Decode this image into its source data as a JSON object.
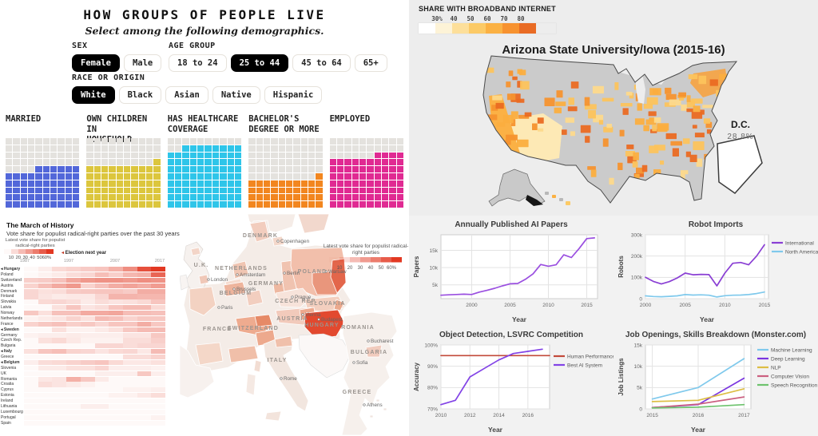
{
  "demographics": {
    "filters": [
      {
        "label": "SEX",
        "selected": "Female",
        "options": [
          "Female",
          "Male"
        ]
      },
      {
        "label": "AGE GROUP",
        "selected": "25 to 44",
        "options": [
          "18 to 24",
          "25 to 44",
          "45 to 64",
          "65+"
        ]
      },
      {
        "label": "RACE OR ORIGIN",
        "selected": "White",
        "options": [
          "White",
          "Black",
          "Asian",
          "Native",
          "Hispanic"
        ]
      }
    ]
  },
  "chart_data": [
    {
      "type": "waffle",
      "title": "HOW GROUPS OF PEOPLE LIVE",
      "subtitle": "Select among the following demographics.",
      "categories": [
        "MARRIED",
        "OWN CHILDREN IN\nHOUSEHOLD",
        "HAS HEALTHCARE\nCOVERAGE",
        "BACHELOR'S\nDEGREE OR MORE",
        "EMPLOYED"
      ],
      "values": [
        56,
        61,
        88,
        41,
        74
      ],
      "unit": "percent of group (cells of 10x10 grid)",
      "colors": [
        "#5267d9",
        "#dcc63d",
        "#2ec5e9",
        "#f2861f",
        "#e02a92"
      ],
      "empty_color": "#e4e2de"
    },
    {
      "type": "choropleth",
      "region": "United States counties",
      "title": "Arizona State University/Iowa (2015-16)",
      "legend_title": "SHARE WITH BROADBAND INTERNET",
      "legend_ticks": [
        "30%",
        "40",
        "50",
        "60",
        "70",
        "80"
      ],
      "legend_colors": [
        "#ffffff",
        "#fdf3d7",
        "#fddf9a",
        "#fcca66",
        "#fbb143",
        "#f7922f",
        "#e96b24"
      ],
      "annotation": {
        "label": "D.C.",
        "value": "28.8%"
      }
    },
    {
      "type": "heatmap",
      "title": "The March of History",
      "subtitle": "Vote share for populist radical-right parties over the past 30 years",
      "legend_label": "Latest vote share for populist radical-right parties",
      "legend_ticks": [
        "10",
        "20",
        "30",
        "40",
        "50",
        "60%"
      ],
      "note_marker": "◂",
      "note_text": " Election next year",
      "year_ticks": [
        "1987",
        "1997",
        "2007",
        "2017"
      ],
      "scale_color": "#e23822",
      "rows": [
        {
          "name": "Hungary",
          "marked": true,
          "values": [
            0,
            2,
            8,
            10,
            12,
            14,
            20,
            30,
            48,
            56
          ]
        },
        {
          "name": "Poland",
          "marked": false,
          "values": [
            0,
            1,
            3,
            7,
            9,
            16,
            11,
            18,
            20,
            42
          ]
        },
        {
          "name": "Switzerland",
          "marked": false,
          "values": [
            11,
            12,
            15,
            23,
            27,
            29,
            29,
            27,
            30,
            29
          ]
        },
        {
          "name": "Austria",
          "marked": false,
          "values": [
            10,
            16,
            22,
            27,
            10,
            15,
            21,
            24,
            21,
            26
          ]
        },
        {
          "name": "Denmark",
          "marked": false,
          "values": [
            9,
            6,
            7,
            12,
            13,
            14,
            14,
            12,
            21,
            21
          ]
        },
        {
          "name": "Finland",
          "marked": false,
          "values": [
            9,
            5,
            3,
            4,
            4,
            9,
            19,
            19,
            18,
            18
          ]
        },
        {
          "name": "Slovakia",
          "marked": false,
          "values": [
            0,
            8,
            9,
            7,
            3,
            7,
            5,
            6,
            8,
            14
          ]
        },
        {
          "name": "Latvia",
          "marked": false,
          "values": [
            0,
            0,
            6,
            14,
            5,
            7,
            14,
            17,
            17,
            8
          ]
        },
        {
          "name": "Norway",
          "marked": false,
          "values": [
            13,
            6,
            15,
            15,
            22,
            22,
            23,
            16,
            16,
            15
          ]
        },
        {
          "name": "Netherlands",
          "marked": false,
          "values": [
            1,
            3,
            5,
            10,
            6,
            17,
            15,
            10,
            13,
            13
          ]
        },
        {
          "name": "France",
          "marked": false,
          "values": [
            10,
            13,
            15,
            11,
            13,
            9,
            14,
            14,
            21,
            13
          ]
        },
        {
          "name": "Sweden",
          "marked": true,
          "values": [
            0,
            0,
            6,
            1,
            1,
            3,
            6,
            13,
            17,
            17
          ]
        },
        {
          "name": "Germany",
          "marked": false,
          "values": [
            1,
            2,
            2,
            3,
            2,
            2,
            2,
            5,
            5,
            13
          ]
        },
        {
          "name": "Czech Rep.",
          "marked": false,
          "values": [
            0,
            6,
            8,
            4,
            1,
            1,
            1,
            7,
            7,
            11
          ]
        },
        {
          "name": "Bulgaria",
          "marked": false,
          "values": [
            0,
            0,
            0,
            0,
            0,
            9,
            9,
            7,
            9,
            9
          ]
        },
        {
          "name": "Italy",
          "marked": true,
          "values": [
            6,
            14,
            16,
            10,
            9,
            5,
            8,
            9,
            4,
            17
          ]
        },
        {
          "name": "Greece",
          "marked": false,
          "values": [
            0,
            0,
            0,
            0,
            0,
            0,
            0,
            7,
            7,
            10
          ]
        },
        {
          "name": "Belgium",
          "marked": true,
          "values": [
            2,
            7,
            8,
            10,
            12,
            14,
            8,
            4,
            4,
            6
          ]
        },
        {
          "name": "Slovenia",
          "marked": false,
          "values": [
            0,
            3,
            3,
            6,
            6,
            9,
            2,
            2,
            2,
            1
          ]
        },
        {
          "name": "UK",
          "marked": false,
          "values": [
            0,
            0,
            0,
            0,
            0,
            2,
            2,
            2,
            13,
            2
          ]
        },
        {
          "name": "Romania",
          "marked": false,
          "values": [
            0,
            4,
            5,
            20,
            13,
            3,
            0,
            0,
            0,
            0
          ]
        },
        {
          "name": "Croatia",
          "marked": false,
          "values": [
            0,
            7,
            5,
            3,
            1,
            0,
            0,
            0,
            0,
            0
          ]
        },
        {
          "name": "Cyprus",
          "marked": false,
          "values": [
            0,
            0,
            0,
            0,
            0,
            0,
            0,
            1,
            1,
            2
          ]
        },
        {
          "name": "Estonia",
          "marked": false,
          "values": [
            0,
            0,
            0,
            0,
            0,
            0,
            1,
            1,
            4,
            7
          ]
        },
        {
          "name": "Ireland",
          "marked": false,
          "values": [
            0,
            0,
            0,
            0,
            0,
            0,
            0,
            0,
            0,
            0
          ]
        },
        {
          "name": "Lithuania",
          "marked": false,
          "values": [
            0,
            0,
            0,
            0,
            2,
            2,
            0,
            0,
            0,
            0
          ]
        },
        {
          "name": "Luxembourg",
          "marked": false,
          "values": [
            0,
            0,
            0,
            0,
            0,
            0,
            0,
            0,
            0,
            0
          ]
        },
        {
          "name": "Portugal",
          "marked": false,
          "values": [
            0,
            0,
            0,
            0,
            0,
            0,
            0,
            0,
            0,
            1
          ]
        },
        {
          "name": "Spain",
          "marked": false,
          "values": [
            0,
            0,
            0,
            0,
            0,
            0,
            0,
            0,
            0,
            0
          ]
        }
      ]
    },
    {
      "type": "choropleth",
      "region": "Europe",
      "legend_label_line1": "Latest vote share for populist radical-",
      "legend_label_line2": "right parties",
      "legend_ticks": [
        "10",
        "20",
        "30",
        "40",
        "50",
        "60%"
      ],
      "scale_color": "#e23822",
      "countries": [
        {
          "name": "DENMARK",
          "x": 101,
          "y": 29
        },
        {
          "name": "U.K.",
          "x": 27,
          "y": 66
        },
        {
          "name": "NETHERLANDS",
          "x": 77,
          "y": 70
        },
        {
          "name": "GERMANY",
          "x": 108,
          "y": 89
        },
        {
          "name": "BELGIUM",
          "x": 70,
          "y": 101
        },
        {
          "name": "POLAND",
          "x": 166,
          "y": 74
        },
        {
          "name": "CZECH REP.",
          "x": 146,
          "y": 111
        },
        {
          "name": "SLOVAKIA",
          "x": 185,
          "y": 114
        },
        {
          "name": "AUSTRIA",
          "x": 141,
          "y": 133
        },
        {
          "name": "HUNGARY",
          "x": 178,
          "y": 141
        },
        {
          "name": "FRANCE",
          "x": 47,
          "y": 146
        },
        {
          "name": "SWITZERLAND",
          "x": 92,
          "y": 145
        },
        {
          "name": "ROMANIA",
          "x": 223,
          "y": 144
        },
        {
          "name": "BULGARIA",
          "x": 237,
          "y": 175
        },
        {
          "name": "ITALY",
          "x": 122,
          "y": 185
        },
        {
          "name": "GREECE",
          "x": 222,
          "y": 225
        }
      ],
      "cities": [
        {
          "name": "Copenhagen",
          "x": 123,
          "y": 34
        },
        {
          "name": "London",
          "x": 36,
          "y": 82
        },
        {
          "name": "Amsterdam",
          "x": 72,
          "y": 76
        },
        {
          "name": "Berlin",
          "x": 131,
          "y": 74
        },
        {
          "name": "Brussels",
          "x": 68,
          "y": 94
        },
        {
          "name": "Warsaw",
          "x": 183,
          "y": 72
        },
        {
          "name": "Prague",
          "x": 141,
          "y": 104
        },
        {
          "name": "Vienna",
          "x": 154,
          "y": 126
        },
        {
          "name": "Budapest",
          "x": 174,
          "y": 132
        },
        {
          "name": "Paris",
          "x": 49,
          "y": 117
        },
        {
          "name": "Bucharest",
          "x": 236,
          "y": 159
        },
        {
          "name": "Sofia",
          "x": 218,
          "y": 186
        },
        {
          "name": "Rome",
          "x": 127,
          "y": 206
        },
        {
          "name": "Athens",
          "x": 231,
          "y": 239
        }
      ]
    },
    {
      "type": "line",
      "title": "Annually Published AI Papers",
      "xlabel": "Year",
      "ylabel": "Papers",
      "xlim": [
        1996,
        2016.4
      ],
      "ylim": [
        1,
        19.5
      ],
      "xticks": [
        2000,
        2005,
        2010,
        2015
      ],
      "xtick_labels": [
        "2000",
        "2005",
        "2010",
        "2015"
      ],
      "yticks": [
        5,
        10,
        15
      ],
      "ytick_labels": [
        "5k",
        "10k",
        "15k"
      ],
      "series": [
        {
          "name": "AI Papers",
          "color": "#9a4fe0",
          "x": [
            1996,
            1997,
            1998,
            1999,
            2000,
            2001,
            2002,
            2003,
            2004,
            2005,
            2006,
            2007,
            2008,
            2009,
            2010,
            2011,
            2012,
            2013,
            2014,
            2015,
            2016
          ],
          "y": [
            2.0,
            2.1,
            2.2,
            2.3,
            2.2,
            2.9,
            3.4,
            4.0,
            4.7,
            5.3,
            5.4,
            6.6,
            8.2,
            10.9,
            10.4,
            10.8,
            13.7,
            12.9,
            15.5,
            18.4,
            18.6
          ]
        }
      ]
    },
    {
      "type": "line",
      "title": "Robot Imports",
      "xlabel": "Year",
      "ylabel": "Robots",
      "xlim": [
        2000,
        2015.5
      ],
      "ylim": [
        0,
        300
      ],
      "xticks": [
        2000,
        2005,
        2010,
        2015
      ],
      "xtick_labels": [
        "2000",
        "2005",
        "2010",
        "2015"
      ],
      "yticks": [
        0,
        100,
        200,
        300
      ],
      "ytick_labels": [
        "0",
        "100k",
        "200k",
        "300k"
      ],
      "series": [
        {
          "name": "International",
          "color": "#8a3fd4",
          "x": [
            2000,
            2001,
            2002,
            2003,
            2004,
            2005,
            2006,
            2007,
            2008,
            2009,
            2010,
            2011,
            2012,
            2013,
            2014,
            2015
          ],
          "y": [
            100,
            81,
            69,
            80,
            97,
            120,
            112,
            114,
            113,
            60,
            120,
            166,
            170,
            159,
            200,
            253
          ]
        },
        {
          "name": "North America",
          "color": "#7fc9ec",
          "x": [
            2000,
            2001,
            2002,
            2003,
            2004,
            2005,
            2006,
            2007,
            2008,
            2009,
            2010,
            2011,
            2012,
            2013,
            2014,
            2015
          ],
          "y": [
            13,
            10,
            9,
            11,
            13,
            19,
            17,
            18,
            16,
            8,
            14,
            16,
            17,
            19,
            24,
            31
          ]
        }
      ]
    },
    {
      "type": "line",
      "title": "Object Detection, LSVRC Competition",
      "xlabel": "Year",
      "ylabel": "Accuracy",
      "xlim": [
        2010,
        2017.5
      ],
      "ylim": [
        70,
        100
      ],
      "xticks": [
        2010,
        2012,
        2014,
        2016
      ],
      "xtick_labels": [
        "2010",
        "2012",
        "2014",
        "2016"
      ],
      "yticks": [
        70,
        80,
        90,
        100
      ],
      "ytick_labels": [
        "70%",
        "80%",
        "90%",
        "100%"
      ],
      "series": [
        {
          "name": "Human Performance",
          "color": "#c24a3a",
          "x": [
            2010,
            2017.5
          ],
          "y": [
            95,
            95
          ]
        },
        {
          "name": "Best AI System",
          "color": "#8243e6",
          "x": [
            2010,
            2011,
            2012,
            2013,
            2014,
            2015,
            2016,
            2017
          ],
          "y": [
            72,
            74,
            85,
            89,
            93,
            96,
            97,
            98
          ]
        }
      ]
    },
    {
      "type": "line",
      "title": "Job Openings, Skills Breakdown (Monster.com)",
      "xlabel": "Year",
      "ylabel": "Job Listings",
      "xlim": [
        2014.85,
        2017.15
      ],
      "ylim": [
        0,
        15
      ],
      "xticks": [
        2015,
        2016,
        2017
      ],
      "xtick_labels": [
        "2015",
        "2016",
        "2017"
      ],
      "yticks": [
        0,
        5,
        10,
        15
      ],
      "ytick_labels": [
        "0",
        "5k",
        "10k",
        "15k"
      ],
      "series": [
        {
          "name": "Machine Learning",
          "color": "#7fc9ec",
          "x": [
            2015,
            2016,
            2017
          ],
          "y": [
            2.3,
            5.0,
            11.8
          ]
        },
        {
          "name": "Deep Learning",
          "color": "#7a35e0",
          "x": [
            2015,
            2016,
            2017
          ],
          "y": [
            0.3,
            1.0,
            7.2
          ]
        },
        {
          "name": "NLP",
          "color": "#ddbe45",
          "x": [
            2015,
            2016,
            2017
          ],
          "y": [
            1.7,
            2.0,
            4.7
          ]
        },
        {
          "name": "Computer Vision",
          "color": "#cb6080",
          "x": [
            2015,
            2016,
            2017
          ],
          "y": [
            0.3,
            1.1,
            2.8
          ]
        },
        {
          "name": "Speech Recognition",
          "color": "#6ec36e",
          "x": [
            2015,
            2016,
            2017
          ],
          "y": [
            0.2,
            0.4,
            1.0
          ]
        }
      ]
    }
  ]
}
